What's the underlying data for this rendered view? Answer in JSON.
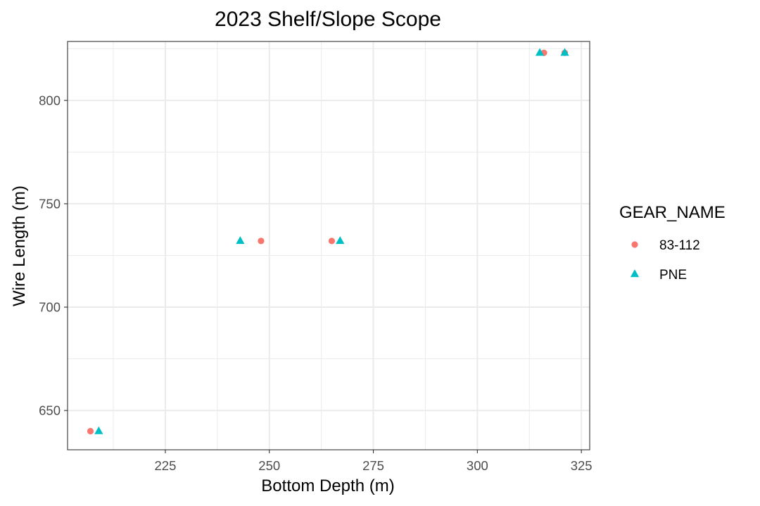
{
  "chart_data": {
    "type": "scatter",
    "title": "2023 Shelf/Slope Scope",
    "xlabel": "Bottom Depth (m)",
    "ylabel": "Wire Length (m)",
    "xlim": [
      201.5,
      327
    ],
    "ylim": [
      631,
      828.5
    ],
    "x_ticks": [
      225,
      250,
      275,
      300,
      325
    ],
    "y_ticks": [
      650,
      700,
      750,
      800
    ],
    "grid": true,
    "legend": {
      "title": "GEAR_NAME",
      "position": "right"
    },
    "series": [
      {
        "name": "83-112",
        "marker": "circle",
        "color": "#f8766d",
        "points": [
          {
            "x": 207,
            "y": 640
          },
          {
            "x": 248,
            "y": 732
          },
          {
            "x": 265,
            "y": 732
          },
          {
            "x": 316,
            "y": 823
          },
          {
            "x": 321,
            "y": 823
          }
        ]
      },
      {
        "name": "PNE",
        "marker": "triangle",
        "color": "#00bfc4",
        "points": [
          {
            "x": 209,
            "y": 640
          },
          {
            "x": 243,
            "y": 732
          },
          {
            "x": 267,
            "y": 732
          },
          {
            "x": 315,
            "y": 823
          },
          {
            "x": 321,
            "y": 823
          }
        ]
      }
    ]
  }
}
